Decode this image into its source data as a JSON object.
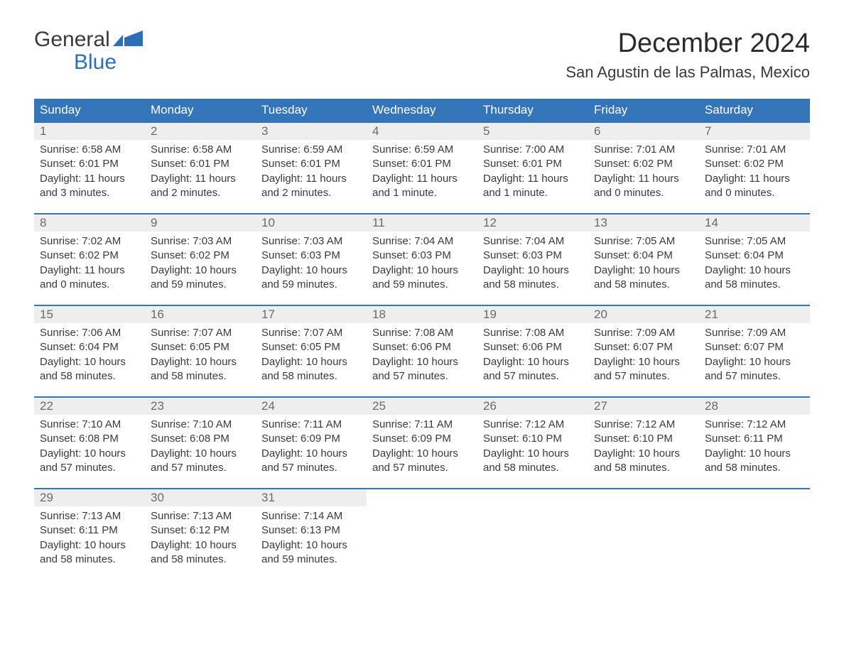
{
  "logo": {
    "top": "General",
    "bottom": "Blue"
  },
  "title": "December 2024",
  "subtitle": "San Agustin de las Palmas, Mexico",
  "colors": {
    "header_bg": "#3474b9",
    "header_text": "#ffffff",
    "daynum_bg": "#eeeeee",
    "daynum_text": "#6a6a6a",
    "row_border": "#3474b9",
    "logo_accent": "#2d6fb7",
    "body_text": "#3a3a3a",
    "page_bg": "#ffffff"
  },
  "weekdays": [
    "Sunday",
    "Monday",
    "Tuesday",
    "Wednesday",
    "Thursday",
    "Friday",
    "Saturday"
  ],
  "weeks": [
    [
      {
        "day": "1",
        "sunrise": "Sunrise: 6:58 AM",
        "sunset": "Sunset: 6:01 PM",
        "daylight1": "Daylight: 11 hours",
        "daylight2": "and 3 minutes."
      },
      {
        "day": "2",
        "sunrise": "Sunrise: 6:58 AM",
        "sunset": "Sunset: 6:01 PM",
        "daylight1": "Daylight: 11 hours",
        "daylight2": "and 2 minutes."
      },
      {
        "day": "3",
        "sunrise": "Sunrise: 6:59 AM",
        "sunset": "Sunset: 6:01 PM",
        "daylight1": "Daylight: 11 hours",
        "daylight2": "and 2 minutes."
      },
      {
        "day": "4",
        "sunrise": "Sunrise: 6:59 AM",
        "sunset": "Sunset: 6:01 PM",
        "daylight1": "Daylight: 11 hours",
        "daylight2": "and 1 minute."
      },
      {
        "day": "5",
        "sunrise": "Sunrise: 7:00 AM",
        "sunset": "Sunset: 6:01 PM",
        "daylight1": "Daylight: 11 hours",
        "daylight2": "and 1 minute."
      },
      {
        "day": "6",
        "sunrise": "Sunrise: 7:01 AM",
        "sunset": "Sunset: 6:02 PM",
        "daylight1": "Daylight: 11 hours",
        "daylight2": "and 0 minutes."
      },
      {
        "day": "7",
        "sunrise": "Sunrise: 7:01 AM",
        "sunset": "Sunset: 6:02 PM",
        "daylight1": "Daylight: 11 hours",
        "daylight2": "and 0 minutes."
      }
    ],
    [
      {
        "day": "8",
        "sunrise": "Sunrise: 7:02 AM",
        "sunset": "Sunset: 6:02 PM",
        "daylight1": "Daylight: 11 hours",
        "daylight2": "and 0 minutes."
      },
      {
        "day": "9",
        "sunrise": "Sunrise: 7:03 AM",
        "sunset": "Sunset: 6:02 PM",
        "daylight1": "Daylight: 10 hours",
        "daylight2": "and 59 minutes."
      },
      {
        "day": "10",
        "sunrise": "Sunrise: 7:03 AM",
        "sunset": "Sunset: 6:03 PM",
        "daylight1": "Daylight: 10 hours",
        "daylight2": "and 59 minutes."
      },
      {
        "day": "11",
        "sunrise": "Sunrise: 7:04 AM",
        "sunset": "Sunset: 6:03 PM",
        "daylight1": "Daylight: 10 hours",
        "daylight2": "and 59 minutes."
      },
      {
        "day": "12",
        "sunrise": "Sunrise: 7:04 AM",
        "sunset": "Sunset: 6:03 PM",
        "daylight1": "Daylight: 10 hours",
        "daylight2": "and 58 minutes."
      },
      {
        "day": "13",
        "sunrise": "Sunrise: 7:05 AM",
        "sunset": "Sunset: 6:04 PM",
        "daylight1": "Daylight: 10 hours",
        "daylight2": "and 58 minutes."
      },
      {
        "day": "14",
        "sunrise": "Sunrise: 7:05 AM",
        "sunset": "Sunset: 6:04 PM",
        "daylight1": "Daylight: 10 hours",
        "daylight2": "and 58 minutes."
      }
    ],
    [
      {
        "day": "15",
        "sunrise": "Sunrise: 7:06 AM",
        "sunset": "Sunset: 6:04 PM",
        "daylight1": "Daylight: 10 hours",
        "daylight2": "and 58 minutes."
      },
      {
        "day": "16",
        "sunrise": "Sunrise: 7:07 AM",
        "sunset": "Sunset: 6:05 PM",
        "daylight1": "Daylight: 10 hours",
        "daylight2": "and 58 minutes."
      },
      {
        "day": "17",
        "sunrise": "Sunrise: 7:07 AM",
        "sunset": "Sunset: 6:05 PM",
        "daylight1": "Daylight: 10 hours",
        "daylight2": "and 58 minutes."
      },
      {
        "day": "18",
        "sunrise": "Sunrise: 7:08 AM",
        "sunset": "Sunset: 6:06 PM",
        "daylight1": "Daylight: 10 hours",
        "daylight2": "and 57 minutes."
      },
      {
        "day": "19",
        "sunrise": "Sunrise: 7:08 AM",
        "sunset": "Sunset: 6:06 PM",
        "daylight1": "Daylight: 10 hours",
        "daylight2": "and 57 minutes."
      },
      {
        "day": "20",
        "sunrise": "Sunrise: 7:09 AM",
        "sunset": "Sunset: 6:07 PM",
        "daylight1": "Daylight: 10 hours",
        "daylight2": "and 57 minutes."
      },
      {
        "day": "21",
        "sunrise": "Sunrise: 7:09 AM",
        "sunset": "Sunset: 6:07 PM",
        "daylight1": "Daylight: 10 hours",
        "daylight2": "and 57 minutes."
      }
    ],
    [
      {
        "day": "22",
        "sunrise": "Sunrise: 7:10 AM",
        "sunset": "Sunset: 6:08 PM",
        "daylight1": "Daylight: 10 hours",
        "daylight2": "and 57 minutes."
      },
      {
        "day": "23",
        "sunrise": "Sunrise: 7:10 AM",
        "sunset": "Sunset: 6:08 PM",
        "daylight1": "Daylight: 10 hours",
        "daylight2": "and 57 minutes."
      },
      {
        "day": "24",
        "sunrise": "Sunrise: 7:11 AM",
        "sunset": "Sunset: 6:09 PM",
        "daylight1": "Daylight: 10 hours",
        "daylight2": "and 57 minutes."
      },
      {
        "day": "25",
        "sunrise": "Sunrise: 7:11 AM",
        "sunset": "Sunset: 6:09 PM",
        "daylight1": "Daylight: 10 hours",
        "daylight2": "and 57 minutes."
      },
      {
        "day": "26",
        "sunrise": "Sunrise: 7:12 AM",
        "sunset": "Sunset: 6:10 PM",
        "daylight1": "Daylight: 10 hours",
        "daylight2": "and 58 minutes."
      },
      {
        "day": "27",
        "sunrise": "Sunrise: 7:12 AM",
        "sunset": "Sunset: 6:10 PM",
        "daylight1": "Daylight: 10 hours",
        "daylight2": "and 58 minutes."
      },
      {
        "day": "28",
        "sunrise": "Sunrise: 7:12 AM",
        "sunset": "Sunset: 6:11 PM",
        "daylight1": "Daylight: 10 hours",
        "daylight2": "and 58 minutes."
      }
    ],
    [
      {
        "day": "29",
        "sunrise": "Sunrise: 7:13 AM",
        "sunset": "Sunset: 6:11 PM",
        "daylight1": "Daylight: 10 hours",
        "daylight2": "and 58 minutes."
      },
      {
        "day": "30",
        "sunrise": "Sunrise: 7:13 AM",
        "sunset": "Sunset: 6:12 PM",
        "daylight1": "Daylight: 10 hours",
        "daylight2": "and 58 minutes."
      },
      {
        "day": "31",
        "sunrise": "Sunrise: 7:14 AM",
        "sunset": "Sunset: 6:13 PM",
        "daylight1": "Daylight: 10 hours",
        "daylight2": "and 59 minutes."
      },
      null,
      null,
      null,
      null
    ]
  ]
}
